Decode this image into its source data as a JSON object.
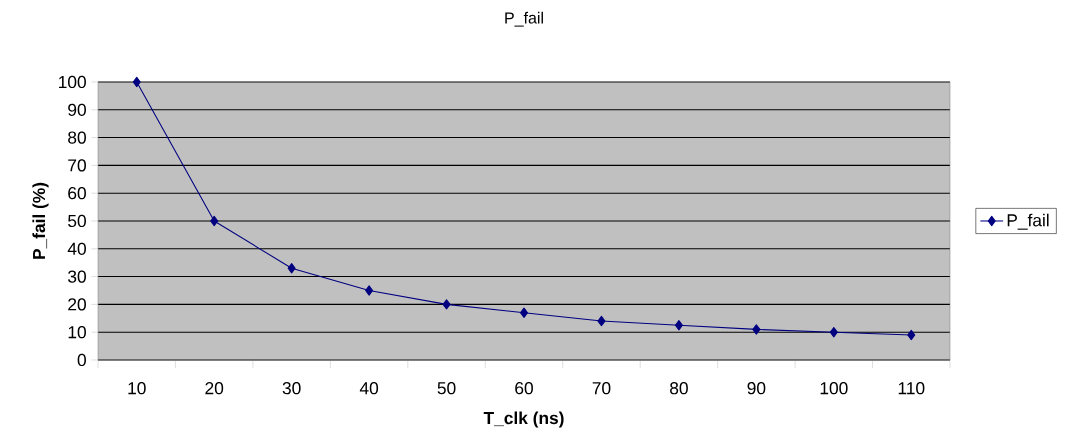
{
  "chart_data": {
    "type": "line",
    "title": "P_fail",
    "xlabel": "T_clk (ns)",
    "ylabel": "P_fail (%)",
    "categories": [
      "10",
      "20",
      "30",
      "40",
      "50",
      "60",
      "70",
      "80",
      "90",
      "100",
      "110"
    ],
    "series": [
      {
        "name": "P_fail",
        "color": "#000080",
        "values": [
          100,
          50,
          33,
          25,
          20,
          17,
          14,
          12.5,
          11,
          10,
          9
        ]
      }
    ],
    "ylim": [
      0,
      100
    ],
    "yticks": [
      0,
      10,
      20,
      30,
      40,
      50,
      60,
      70,
      80,
      90,
      100
    ],
    "grid": "y",
    "legend": "right",
    "marker": "diamond",
    "line_style": "solid"
  }
}
